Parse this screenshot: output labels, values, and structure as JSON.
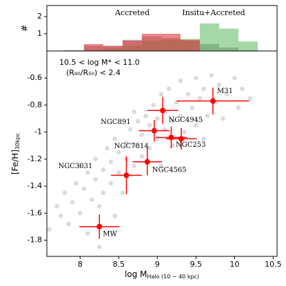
{
  "chart_data": [
    {
      "type": "histogram",
      "ylabel": "#",
      "bins": [
        7.8,
        8.05,
        8.3,
        8.55,
        8.8,
        9.05,
        9.3,
        9.55,
        9.8,
        10.05,
        10.3
      ],
      "xlim": [
        7.57,
        10.55
      ],
      "ylim": [
        0,
        2.64
      ],
      "yticks": [
        1,
        2
      ],
      "series": [
        {
          "name": "Accreted",
          "color": "#7f7f7f",
          "text_color": "#000000",
          "values": [
            0.05,
            0.3,
            0.3,
            0.65,
            0.85,
            0.75,
            0.6,
            0.4,
            0.2,
            0.05
          ]
        },
        {
          "name": "Insitu+Accreted",
          "color": "#4caf50",
          "text_color": "#1a7a1a",
          "values": [
            0,
            0.05,
            0.15,
            0.3,
            0.6,
            0.65,
            0.7,
            1.6,
            1.3,
            0.55
          ]
        },
        {
          "color": "#e0373c",
          "values": [
            0,
            0.4,
            0.3,
            0.6,
            1.0,
            1.0,
            0.65,
            0,
            0,
            0
          ]
        }
      ]
    },
    {
      "type": "scatter",
      "xlabel": "log M",
      "xlabel_sub": "Halo (10 − 40 kpc)",
      "ylabel": "[Fe/H]",
      "ylabel_sub": "30kpc",
      "annotations": [
        "10.5 < log M* < 11.0",
        "(R₉₀/R₅₀) < 2.4"
      ],
      "xlim": [
        7.57,
        10.55
      ],
      "ylim": [
        -1.92,
        -0.4
      ],
      "xticks": [
        8.0,
        8.5,
        9.0,
        9.5,
        10.0,
        10.5
      ],
      "yticks": [
        -1.8,
        -1.6,
        -1.4,
        -1.2,
        -1.0,
        -0.8,
        -0.6
      ],
      "series": [
        {
          "color": "#999999",
          "x": [
            7.6,
            7.7,
            7.75,
            7.8,
            7.85,
            7.9,
            7.95,
            8.0,
            8.05,
            8.1,
            8.1,
            8.15,
            8.2,
            8.2,
            8.25,
            8.3,
            8.3,
            8.35,
            8.4,
            8.4,
            8.45,
            8.5,
            8.5,
            8.55,
            8.6,
            8.6,
            8.65,
            8.7,
            8.7,
            8.75,
            8.8,
            8.8,
            8.85,
            8.9,
            8.9,
            8.95,
            9.0,
            9.0,
            9.05,
            9.05,
            9.1,
            9.1,
            9.15,
            9.2,
            9.2,
            9.25,
            9.3,
            9.3,
            9.35,
            9.4,
            9.45,
            9.5,
            9.5,
            9.55,
            9.6,
            9.65,
            9.7,
            9.75,
            9.8,
            9.85,
            9.9,
            10.0,
            10.05,
            10.1,
            10.2,
            8.25,
            8.45,
            8.0,
            9.6,
            8.7
          ],
          "values": [
            -1.72,
            -1.55,
            -1.62,
            -1.45,
            -1.68,
            -1.52,
            -1.38,
            -1.6,
            -1.42,
            -1.3,
            -1.75,
            -1.5,
            -1.35,
            -1.2,
            -1.55,
            -1.28,
            -1.45,
            -1.12,
            -1.38,
            -1.22,
            -1.05,
            -1.3,
            -1.15,
            -1.45,
            -1.08,
            -1.2,
            -0.98,
            -1.25,
            -1.1,
            -0.92,
            -1.18,
            -1.02,
            -0.88,
            -1.12,
            -0.95,
            -0.8,
            -1.05,
            -0.9,
            -1.25,
            -0.72,
            -0.98,
            -0.85,
            -0.68,
            -0.92,
            -1.1,
            -0.78,
            -0.62,
            -0.88,
            -1.0,
            -0.72,
            -0.82,
            -0.6,
            -0.95,
            -0.75,
            -0.68,
            -0.88,
            -0.58,
            -0.78,
            -0.65,
            -0.9,
            -0.72,
            -0.6,
            -0.82,
            -0.68,
            -0.75,
            -1.85,
            -1.62,
            -1.25,
            -1.05,
            -0.85
          ]
        },
        {
          "color": "#ff0000",
          "labels": [
            "MW",
            "NGC3031",
            "NGC4565",
            "NGC7814",
            "NGC891",
            "NGC4945",
            "NGC253",
            "M31"
          ],
          "label_colors": [
            "#0000cc",
            "#ff0000",
            "#ff0000",
            "#ff0000",
            "#ff0000",
            "#ff0000",
            "#ff0000",
            "#0000cc"
          ],
          "x": [
            8.25,
            8.6,
            8.87,
            8.96,
            9.07,
            9.18,
            9.31,
            9.72
          ],
          "values": [
            -1.7,
            -1.32,
            -1.22,
            -0.99,
            -0.84,
            -1.04,
            -1.05,
            -0.77
          ],
          "xerr": [
            0.26,
            0.2,
            0.19,
            0.2,
            0.2,
            0.2,
            0.2,
            0.47
          ],
          "yerr": [
            0.09,
            0.14,
            0.1,
            0.08,
            0.1,
            0.08,
            0.08,
            0.1
          ]
        }
      ]
    }
  ]
}
